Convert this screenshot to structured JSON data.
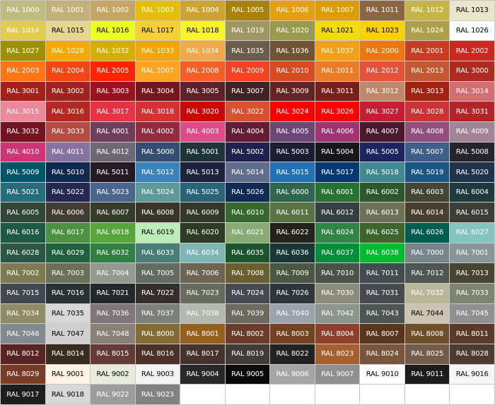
{
  "chart_data": {
    "type": "table",
    "swatches": [
      [
        "RAL 1000",
        "#bebd7f",
        "#fff"
      ],
      [
        "RAL 1001",
        "#c2b078",
        "#fff"
      ],
      [
        "RAL 1002",
        "#c6a664",
        "#fff"
      ],
      [
        "RAL 1003",
        "#e5be01",
        "#fff"
      ],
      [
        "RAL 1004",
        "#cda434",
        "#fff"
      ],
      [
        "RAL 1005",
        "#a98307",
        "#fff"
      ],
      [
        "RAL 1006",
        "#e4a010",
        "#fff"
      ],
      [
        "RAL 1007",
        "#dc9d00",
        "#fff"
      ],
      [
        "RAL 1011",
        "#8a6642",
        "#fff"
      ],
      [
        "RAL 1012",
        "#c7b446",
        "#fff"
      ],
      [
        "RAL 1013",
        "#eae6ca",
        "#000"
      ],
      [
        "RAL 1014",
        "#e1cc4f",
        "#fff"
      ],
      [
        "RAL 1015",
        "#e6d690",
        "#000"
      ],
      [
        "RAL 1016",
        "#edff21",
        "#000"
      ],
      [
        "RAL 1017",
        "#f5d033",
        "#000"
      ],
      [
        "RAL 1018",
        "#f8f32b",
        "#000"
      ],
      [
        "RAL 1019",
        "#9e9764",
        "#fff"
      ],
      [
        "RAL 1020",
        "#999950",
        "#fff"
      ],
      [
        "RAL 1021",
        "#f3da0b",
        "#000"
      ],
      [
        "RAL 1023",
        "#fad201",
        "#000"
      ],
      [
        "RAL 1024",
        "#aea04b",
        "#fff"
      ],
      [
        "RAL 1026",
        "#ffffff",
        "#000"
      ],
      [
        "RAL 1027",
        "#9d9101",
        "#fff"
      ],
      [
        "RAL 1028",
        "#f4a900",
        "#fff"
      ],
      [
        "RAL 1032",
        "#d6ae01",
        "#fff"
      ],
      [
        "RAL 1033",
        "#f3a505",
        "#fff"
      ],
      [
        "RAL 1034",
        "#efa94a",
        "#fff"
      ],
      [
        "RAL 1035",
        "#6a5d4d",
        "#fff"
      ],
      [
        "RAL 1036",
        "#705335",
        "#fff"
      ],
      [
        "RAL 1037",
        "#f39f18",
        "#fff"
      ],
      [
        "RAL 2000",
        "#ed760e",
        "#fff"
      ],
      [
        "RAL 2001",
        "#c93c20",
        "#fff"
      ],
      [
        "RAL 2002",
        "#cb2821",
        "#fff"
      ],
      [
        "RAL 2003",
        "#ff7514",
        "#fff"
      ],
      [
        "RAL 2004",
        "#f44611",
        "#fff"
      ],
      [
        "RAL 2005",
        "#ff2301",
        "#fff"
      ],
      [
        "RAL 2007",
        "#ffa420",
        "#fff"
      ],
      [
        "RAL 2008",
        "#f75e25",
        "#fff"
      ],
      [
        "RAL 2009",
        "#f54021",
        "#fff"
      ],
      [
        "RAL 2010",
        "#d84b20",
        "#fff"
      ],
      [
        "RAL 2011",
        "#ec7c26",
        "#fff"
      ],
      [
        "RAL 2012",
        "#e55137",
        "#fff"
      ],
      [
        "RAL 2013",
        "#c35831",
        "#fff"
      ],
      [
        "RAL 3000",
        "#af2b1e",
        "#fff"
      ],
      [
        "RAL 3001",
        "#a52019",
        "#fff"
      ],
      [
        "RAL 3002",
        "#a2231d",
        "#fff"
      ],
      [
        "RAL 3003",
        "#9b111e",
        "#fff"
      ],
      [
        "RAL 3004",
        "#75151e",
        "#fff"
      ],
      [
        "RAL 3005",
        "#5e2129",
        "#fff"
      ],
      [
        "RAL 3007",
        "#412227",
        "#fff"
      ],
      [
        "RAL 3009",
        "#642424",
        "#fff"
      ],
      [
        "RAL 3011",
        "#781f19",
        "#fff"
      ],
      [
        "RAL 3012",
        "#c1876b",
        "#fff"
      ],
      [
        "RAL 3013",
        "#a12312",
        "#fff"
      ],
      [
        "RAL 3014",
        "#d36e70",
        "#fff"
      ],
      [
        "RAL 3015",
        "#ea899a",
        "#fff"
      ],
      [
        "RAL 3016",
        "#b32821",
        "#fff"
      ],
      [
        "RAL 3017",
        "#e63244",
        "#fff"
      ],
      [
        "RAL 3018",
        "#d53032",
        "#fff"
      ],
      [
        "RAL 3020",
        "#cc0605",
        "#fff"
      ],
      [
        "RAL 3022",
        "#d95030",
        "#fff"
      ],
      [
        "RAL 3024",
        "#f80000",
        "#fff"
      ],
      [
        "RAL 3026",
        "#fe0000",
        "#fff"
      ],
      [
        "RAL 3027",
        "#c51d34",
        "#fff"
      ],
      [
        "RAL 3028",
        "#cb3234",
        "#fff"
      ],
      [
        "RAL 3031",
        "#b32428",
        "#fff"
      ],
      [
        "RAL 3032",
        "#721422",
        "#fff"
      ],
      [
        "RAL 3033",
        "#b44c43",
        "#fff"
      ],
      [
        "RAL 4001",
        "#6d3f5b",
        "#fff"
      ],
      [
        "RAL 4002",
        "#922b3e",
        "#fff"
      ],
      [
        "RAL 4003",
        "#de4c8a",
        "#fff"
      ],
      [
        "RAL 4004",
        "#641c34",
        "#fff"
      ],
      [
        "RAL 4005",
        "#6c4675",
        "#fff"
      ],
      [
        "RAL 4006",
        "#a03472",
        "#fff"
      ],
      [
        "RAL 4007",
        "#4a192c",
        "#fff"
      ],
      [
        "RAL 4008",
        "#924e7d",
        "#fff"
      ],
      [
        "RAL 4009",
        "#a18594",
        "#fff"
      ],
      [
        "RAL 4010",
        "#cf3476",
        "#fff"
      ],
      [
        "RAL 4011",
        "#8673a1",
        "#fff"
      ],
      [
        "RAL 4012",
        "#6c6874",
        "#fff"
      ],
      [
        "RAL 5000",
        "#354d73",
        "#fff"
      ],
      [
        "RAL 5001",
        "#1f3438",
        "#fff"
      ],
      [
        "RAL 5002",
        "#20214f",
        "#fff"
      ],
      [
        "RAL 5003",
        "#1d1e33",
        "#fff"
      ],
      [
        "RAL 5004",
        "#18171c",
        "#fff"
      ],
      [
        "RAL 5005",
        "#1e2460",
        "#fff"
      ],
      [
        "RAL 5007",
        "#3e5f8a",
        "#fff"
      ],
      [
        "RAL 5008",
        "#26252d",
        "#fff"
      ],
      [
        "RAL 5009",
        "#025669",
        "#fff"
      ],
      [
        "RAL 5010",
        "#0e294b",
        "#fff"
      ],
      [
        "RAL 5011",
        "#231a24",
        "#fff"
      ],
      [
        "RAL 5012",
        "#3b83bd",
        "#fff"
      ],
      [
        "RAL 5013",
        "#1e213d",
        "#fff"
      ],
      [
        "RAL 5014",
        "#606e8c",
        "#fff"
      ],
      [
        "RAL 5015",
        "#2271b3",
        "#fff"
      ],
      [
        "RAL 5017",
        "#063971",
        "#fff"
      ],
      [
        "RAL 5018",
        "#3f888f",
        "#fff"
      ],
      [
        "RAL 5019",
        "#1b5583",
        "#fff"
      ],
      [
        "RAL 5020",
        "#1d334a",
        "#fff"
      ],
      [
        "RAL 5021",
        "#256d7b",
        "#fff"
      ],
      [
        "RAL 5022",
        "#252850",
        "#fff"
      ],
      [
        "RAL 5023",
        "#49678d",
        "#fff"
      ],
      [
        "RAL 5024",
        "#5d9b9b",
        "#fff"
      ],
      [
        "RAL 5025",
        "#2a6478",
        "#fff"
      ],
      [
        "RAL 5026",
        "#102c54",
        "#fff"
      ],
      [
        "RAL 6000",
        "#316650",
        "#fff"
      ],
      [
        "RAL 6001",
        "#287233",
        "#fff"
      ],
      [
        "RAL 6002",
        "#2d572c",
        "#fff"
      ],
      [
        "RAL 6003",
        "#424632",
        "#fff"
      ],
      [
        "RAL 6004",
        "#1f3a3d",
        "#fff"
      ],
      [
        "RAL 6005",
        "#2f4538",
        "#fff"
      ],
      [
        "RAL 6006",
        "#3e3b32",
        "#fff"
      ],
      [
        "RAL 6007",
        "#343b29",
        "#fff"
      ],
      [
        "RAL 6008",
        "#39352a",
        "#fff"
      ],
      [
        "RAL 6009",
        "#31372b",
        "#fff"
      ],
      [
        "RAL 6010",
        "#35682d",
        "#fff"
      ],
      [
        "RAL 6011",
        "#587246",
        "#fff"
      ],
      [
        "RAL 6012",
        "#343e40",
        "#fff"
      ],
      [
        "RAL 6013",
        "#6c7156",
        "#fff"
      ],
      [
        "RAL 6014",
        "#47402e",
        "#fff"
      ],
      [
        "RAL 6015",
        "#3b3c36",
        "#fff"
      ],
      [
        "RAL 6016",
        "#1e5945",
        "#fff"
      ],
      [
        "RAL 6017",
        "#4c9141",
        "#fff"
      ],
      [
        "RAL 6018",
        "#57a639",
        "#fff"
      ],
      [
        "RAL 6019",
        "#bdecb6",
        "#000"
      ],
      [
        "RAL 6020",
        "#2e3a23",
        "#fff"
      ],
      [
        "RAL 6021",
        "#89ac76",
        "#fff"
      ],
      [
        "RAL 6022",
        "#25221b",
        "#fff"
      ],
      [
        "RAL 6024",
        "#308446",
        "#fff"
      ],
      [
        "RAL 6025",
        "#3d642d",
        "#fff"
      ],
      [
        "RAL 6026",
        "#015d52",
        "#fff"
      ],
      [
        "RAL 6027",
        "#84c3be",
        "#fff"
      ],
      [
        "RAL 6028",
        "#2c5545",
        "#fff"
      ],
      [
        "RAL 6029",
        "#20603d",
        "#fff"
      ],
      [
        "RAL 6032",
        "#317f43",
        "#fff"
      ],
      [
        "RAL 6033",
        "#497e76",
        "#fff"
      ],
      [
        "RAL 6034",
        "#7fb5b5",
        "#fff"
      ],
      [
        "RAL 6035",
        "#1c542d",
        "#fff"
      ],
      [
        "RAL 6036",
        "#193737",
        "#fff"
      ],
      [
        "RAL 6037",
        "#008f39",
        "#fff"
      ],
      [
        "RAL 6038",
        "#00bb2d",
        "#fff"
      ],
      [
        "RAL 7000",
        "#78858b",
        "#fff"
      ],
      [
        "RAL 7001",
        "#8a9597",
        "#fff"
      ],
      [
        "RAL 7002",
        "#7e7b52",
        "#fff"
      ],
      [
        "RAL 7003",
        "#6c7059",
        "#fff"
      ],
      [
        "RAL 7004",
        "#969992",
        "#fff"
      ],
      [
        "RAL 7005",
        "#646b63",
        "#fff"
      ],
      [
        "RAL 7006",
        "#6d6552",
        "#fff"
      ],
      [
        "RAL 7008",
        "#6a5f31",
        "#fff"
      ],
      [
        "RAL 7009",
        "#4d5645",
        "#fff"
      ],
      [
        "RAL 7010",
        "#4c514a",
        "#fff"
      ],
      [
        "RAL 7011",
        "#434b4d",
        "#fff"
      ],
      [
        "RAL 7012",
        "#4e5754",
        "#fff"
      ],
      [
        "RAL 7013",
        "#464531",
        "#fff"
      ],
      [
        "RAL 7015",
        "#434750",
        "#fff"
      ],
      [
        "RAL 7016",
        "#293133",
        "#fff"
      ],
      [
        "RAL 7021",
        "#23282b",
        "#fff"
      ],
      [
        "RAL 7022",
        "#332f2c",
        "#fff"
      ],
      [
        "RAL 7023",
        "#686c5e",
        "#fff"
      ],
      [
        "RAL 7024",
        "#474a51",
        "#fff"
      ],
      [
        "RAL 7026",
        "#2f353b",
        "#fff"
      ],
      [
        "RAL 7030",
        "#8b8c7a",
        "#fff"
      ],
      [
        "RAL 7031",
        "#474b4e",
        "#fff"
      ],
      [
        "RAL 7032",
        "#b8b799",
        "#fff"
      ],
      [
        "RAL 7033",
        "#7d8471",
        "#fff"
      ],
      [
        "RAL 7034",
        "#8f8b66",
        "#fff"
      ],
      [
        "RAL 7035",
        "#d7d7d7",
        "#000"
      ],
      [
        "RAL 7036",
        "#7f7679",
        "#fff"
      ],
      [
        "RAL 7037",
        "#7d7f7d",
        "#fff"
      ],
      [
        "RAL 7038",
        "#b5b8b1",
        "#fff"
      ],
      [
        "RAL 7039",
        "#6c6960",
        "#fff"
      ],
      [
        "RAL 7040",
        "#9da1aa",
        "#fff"
      ],
      [
        "RAL 7042",
        "#8d948d",
        "#fff"
      ],
      [
        "RAL 7043",
        "#4e5452",
        "#fff"
      ],
      [
        "RAL 7044",
        "#cac4b0",
        "#000"
      ],
      [
        "RAL 7045",
        "#909090",
        "#fff"
      ],
      [
        "RAL 7046",
        "#82898f",
        "#fff"
      ],
      [
        "RAL 7047",
        "#d0d0d0",
        "#000"
      ],
      [
        "RAL 7048",
        "#898176",
        "#fff"
      ],
      [
        "RAL 8000",
        "#826c34",
        "#fff"
      ],
      [
        "RAL 8001",
        "#955f20",
        "#fff"
      ],
      [
        "RAL 8002",
        "#6c3b2a",
        "#fff"
      ],
      [
        "RAL 8003",
        "#734222",
        "#fff"
      ],
      [
        "RAL 8004",
        "#8e402a",
        "#fff"
      ],
      [
        "RAL 8007",
        "#59351f",
        "#fff"
      ],
      [
        "RAL 8008",
        "#6f4f28",
        "#fff"
      ],
      [
        "RAL 8011",
        "#5b3a29",
        "#fff"
      ],
      [
        "RAL 8012",
        "#592321",
        "#fff"
      ],
      [
        "RAL 8014",
        "#382c1e",
        "#fff"
      ],
      [
        "RAL 8015",
        "#633a34",
        "#fff"
      ],
      [
        "RAL 8016",
        "#4c2f27",
        "#fff"
      ],
      [
        "RAL 8017",
        "#45322e",
        "#fff"
      ],
      [
        "RAL 8019",
        "#403a3a",
        "#fff"
      ],
      [
        "RAL 8022",
        "#212121",
        "#fff"
      ],
      [
        "RAL 8023",
        "#a65e2e",
        "#fff"
      ],
      [
        "RAL 8024",
        "#79553d",
        "#fff"
      ],
      [
        "RAL 8025",
        "#755c48",
        "#fff"
      ],
      [
        "RAL 8028",
        "#4e3b31",
        "#fff"
      ],
      [
        "RAL 8029",
        "#763c28",
        "#fff"
      ],
      [
        "RAL 9001",
        "#fdf4e3",
        "#000"
      ],
      [
        "RAL 9002",
        "#e7ebda",
        "#000"
      ],
      [
        "RAL 9003",
        "#f4f4f4",
        "#000"
      ],
      [
        "RAL 9004",
        "#282828",
        "#fff"
      ],
      [
        "RAL 9005",
        "#0a0a0a",
        "#fff"
      ],
      [
        "RAL 9006",
        "#a5a5a5",
        "#fff"
      ],
      [
        "RAL 9007",
        "#8f8f8f",
        "#fff"
      ],
      [
        "RAL 9010",
        "#ffffff",
        "#000"
      ],
      [
        "RAL 9011",
        "#1c1c1c",
        "#fff"
      ],
      [
        "RAL 9016",
        "#f6f6f6",
        "#000"
      ],
      [
        "RAL 9017",
        "#1e1e1e",
        "#fff"
      ],
      [
        "RAL 9018",
        "#d7d7d7",
        "#000"
      ],
      [
        "RAL 9022",
        "#9c9c9c",
        "#fff"
      ],
      [
        "RAL 9023",
        "#828282",
        "#fff"
      ]
    ]
  }
}
